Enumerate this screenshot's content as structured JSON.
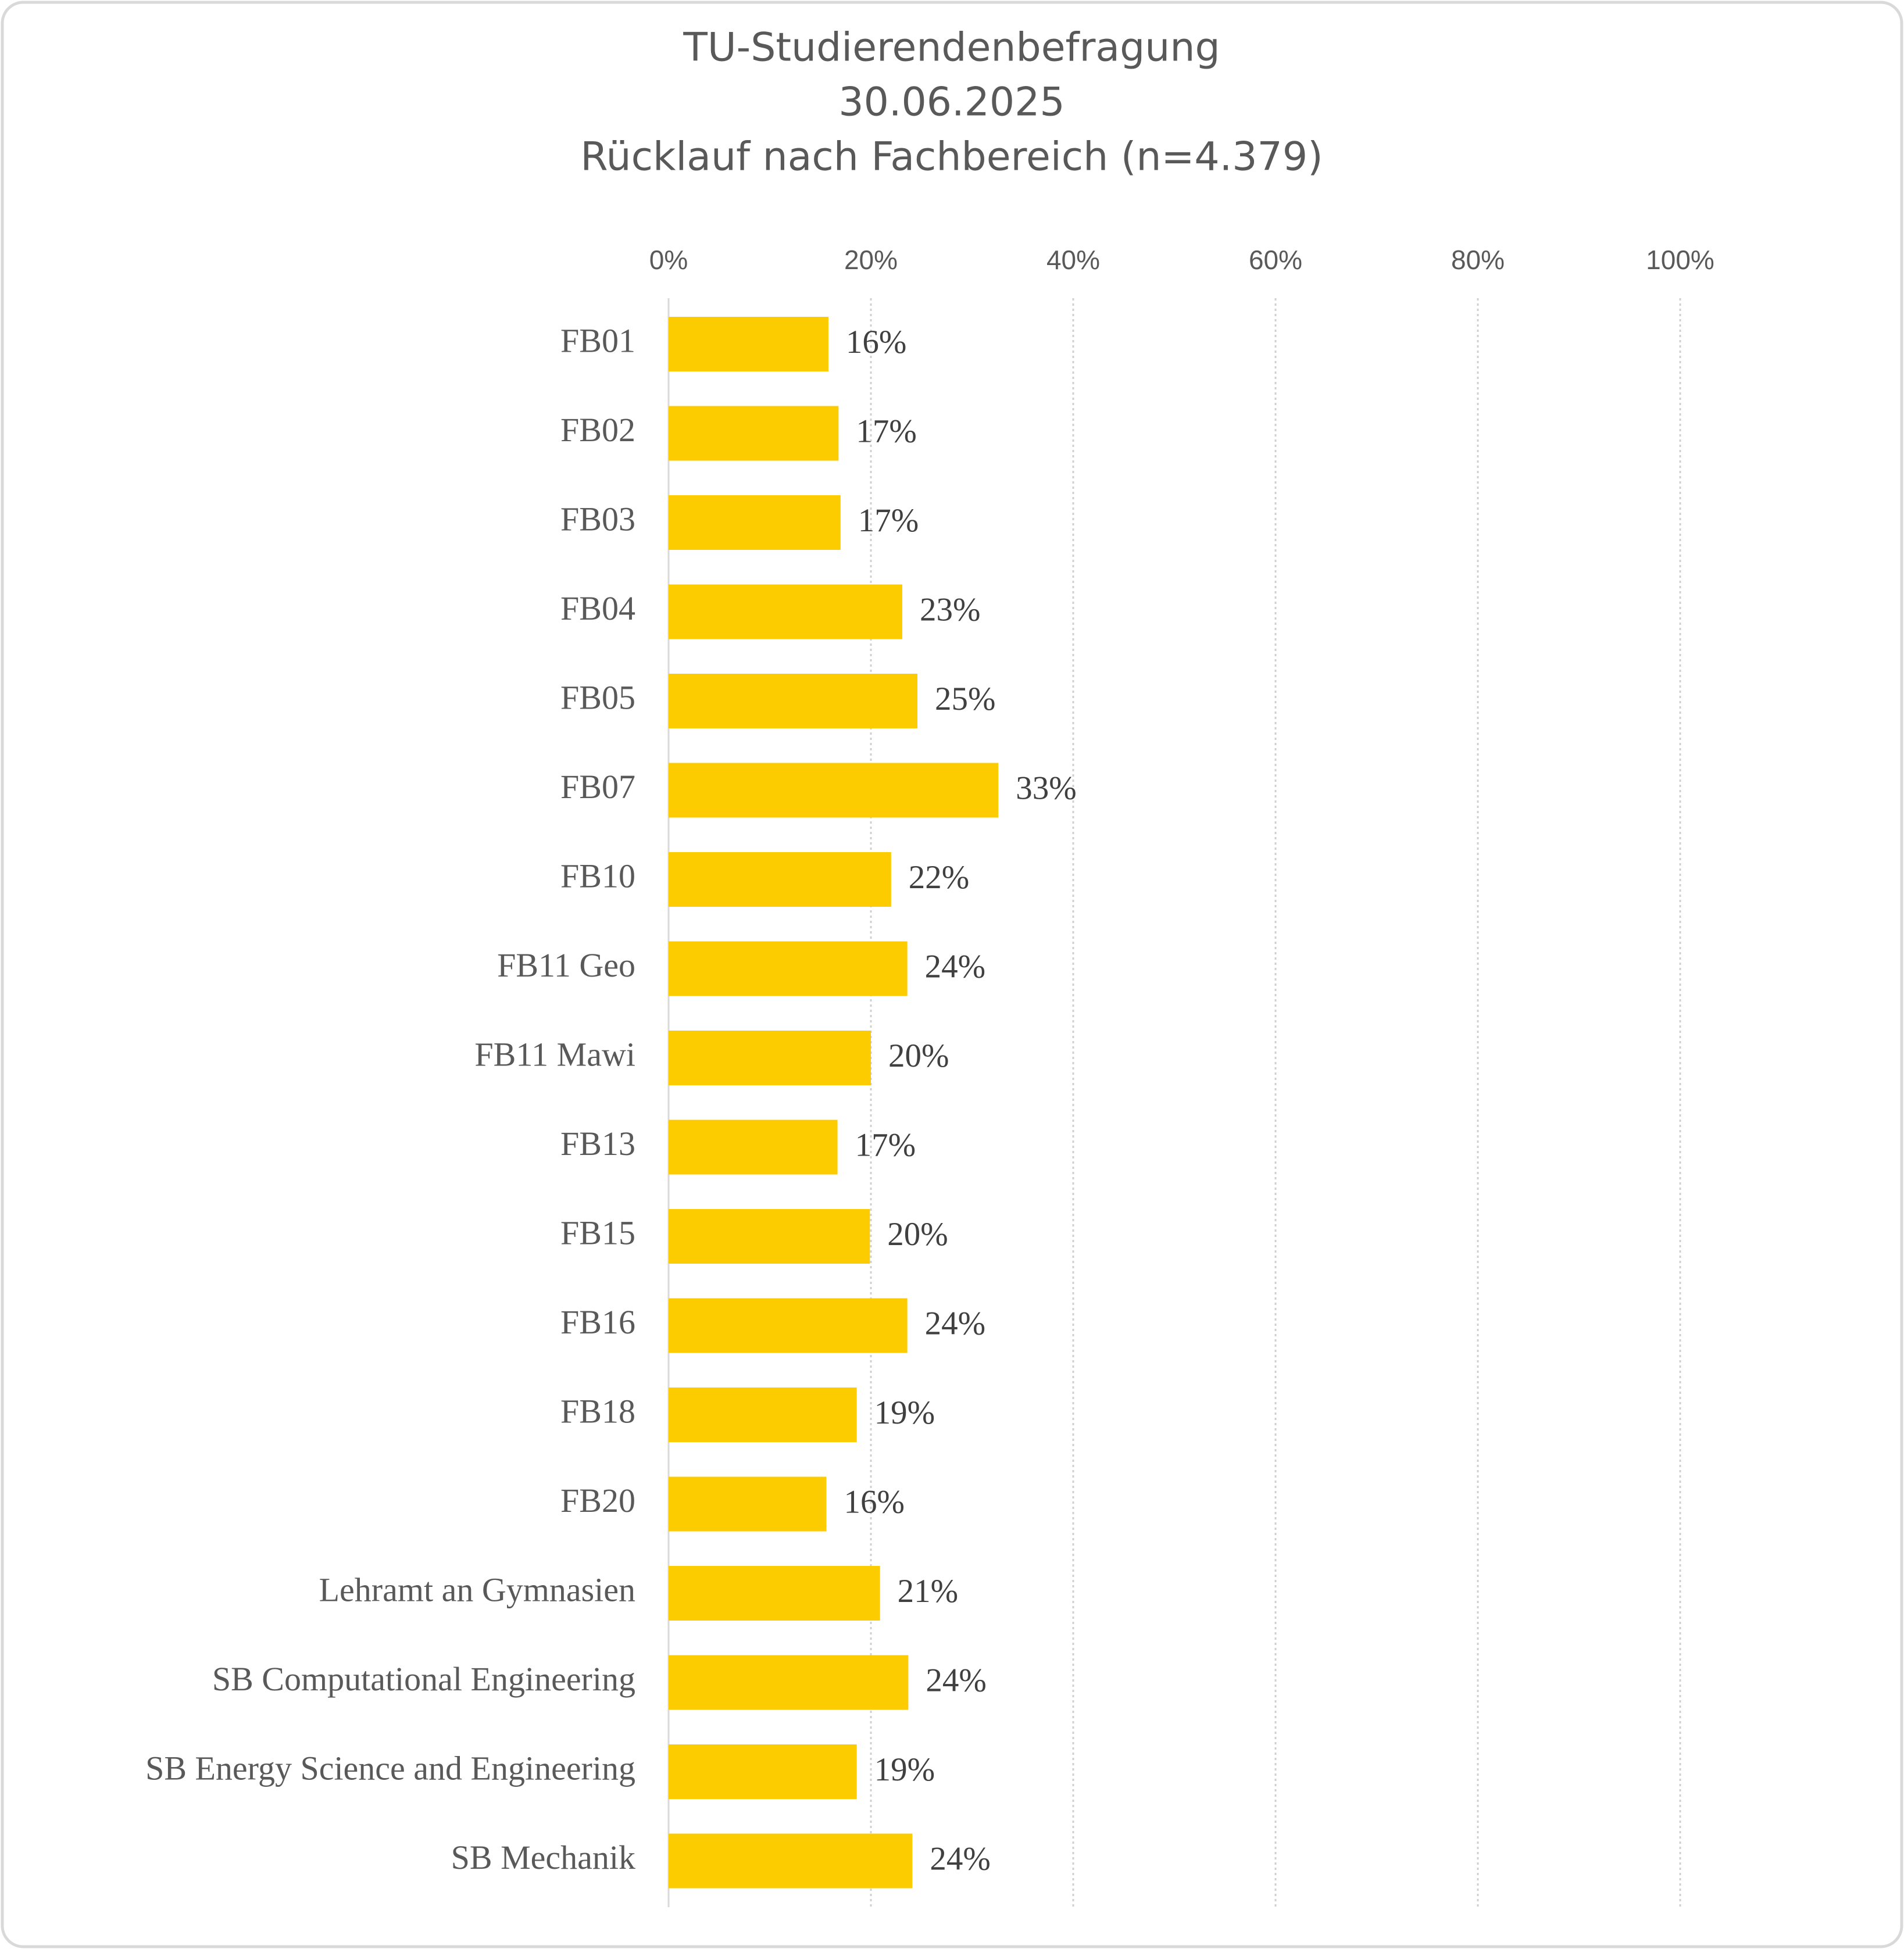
{
  "chart_data": {
    "type": "bar",
    "orientation": "horizontal",
    "title": [
      "TU-Studierendenbefragung",
      "30.06.2025",
      "Rücklauf nach Fachbereich (n=4.379)"
    ],
    "categories": [
      "FB01",
      "FB02",
      "FB03",
      "FB04",
      "FB05",
      "FB07",
      "FB10",
      "FB11 Geo",
      "FB11 Mawi",
      "FB13",
      "FB15",
      "FB16",
      "FB18",
      "FB20",
      "Lehramt an Gymnasien",
      "SB Computational Engineering",
      "SB Energy Science and Engineering",
      "SB Mechanik"
    ],
    "values": [
      15.8,
      16.8,
      17.0,
      23.1,
      24.6,
      32.6,
      22.0,
      23.6,
      20.0,
      16.7,
      19.9,
      23.6,
      18.6,
      15.6,
      20.9,
      23.7,
      18.6,
      24.1
    ],
    "value_labels": [
      "16%",
      "17%",
      "17%",
      "23%",
      "25%",
      "33%",
      "22%",
      "24%",
      "20%",
      "17%",
      "20%",
      "24%",
      "19%",
      "16%",
      "21%",
      "24%",
      "19%",
      "24%"
    ],
    "color": "#fccb00",
    "xlim": [
      0,
      100
    ],
    "xticks": [
      {
        "value": 0,
        "label": "0%"
      },
      {
        "value": 20,
        "label": "20%"
      },
      {
        "value": 40,
        "label": "40%"
      },
      {
        "value": 60,
        "label": "60%"
      },
      {
        "value": 80,
        "label": "80%"
      },
      {
        "value": 100,
        "label": "100%"
      }
    ],
    "grid": true
  }
}
